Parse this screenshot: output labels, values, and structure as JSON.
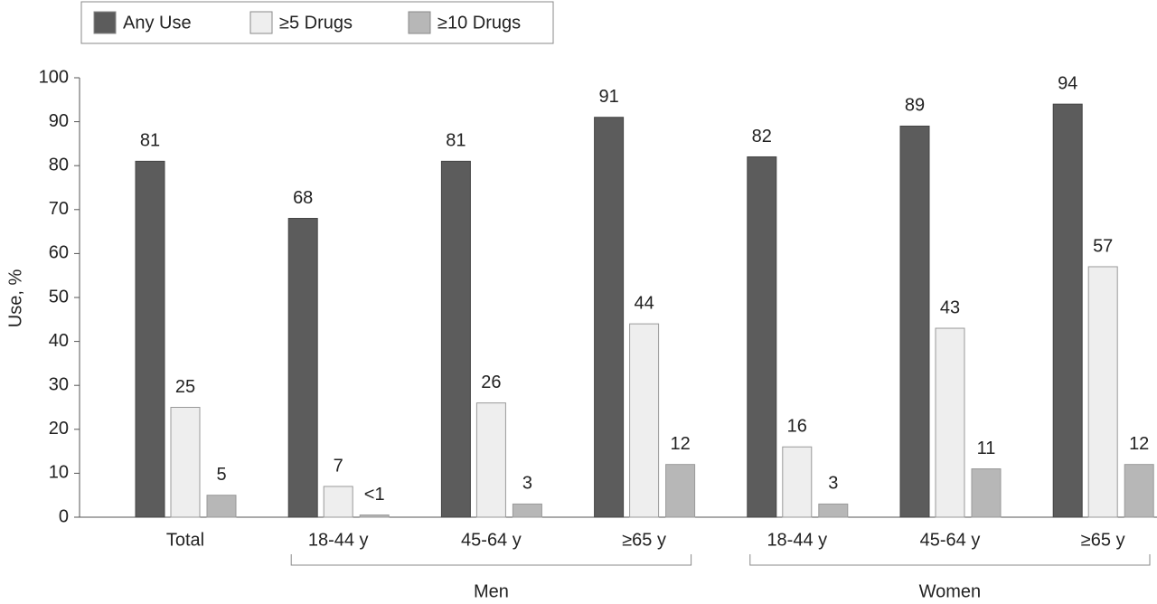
{
  "chart_data": {
    "type": "bar",
    "y_label": "Use, %",
    "categories": [
      "Total",
      "18-44 y",
      "45-64 y",
      "≥65 y",
      "18-44 y",
      "45-64 y",
      "≥65 y"
    ],
    "group_labels": [
      "Men",
      "Women"
    ],
    "series": [
      {
        "name": "Any Use",
        "color": "#5c5c5c",
        "values": [
          81,
          68,
          81,
          91,
          82,
          89,
          94
        ]
      },
      {
        "name": "≥5 Drugs",
        "color": "#eeeeee",
        "values": [
          25,
          7,
          26,
          44,
          16,
          43,
          57
        ]
      },
      {
        "name": "≥10 Drugs",
        "color": "#b7b7b7",
        "values": [
          5,
          0.5,
          3,
          12,
          3,
          11,
          12
        ],
        "value_labels": [
          "5",
          "<1",
          "3",
          "12",
          "3",
          "11",
          "12"
        ]
      }
    ],
    "ylim": [
      0,
      100
    ],
    "yticks": [
      0,
      10,
      20,
      30,
      40,
      50,
      60,
      70,
      80,
      90,
      100
    ]
  }
}
